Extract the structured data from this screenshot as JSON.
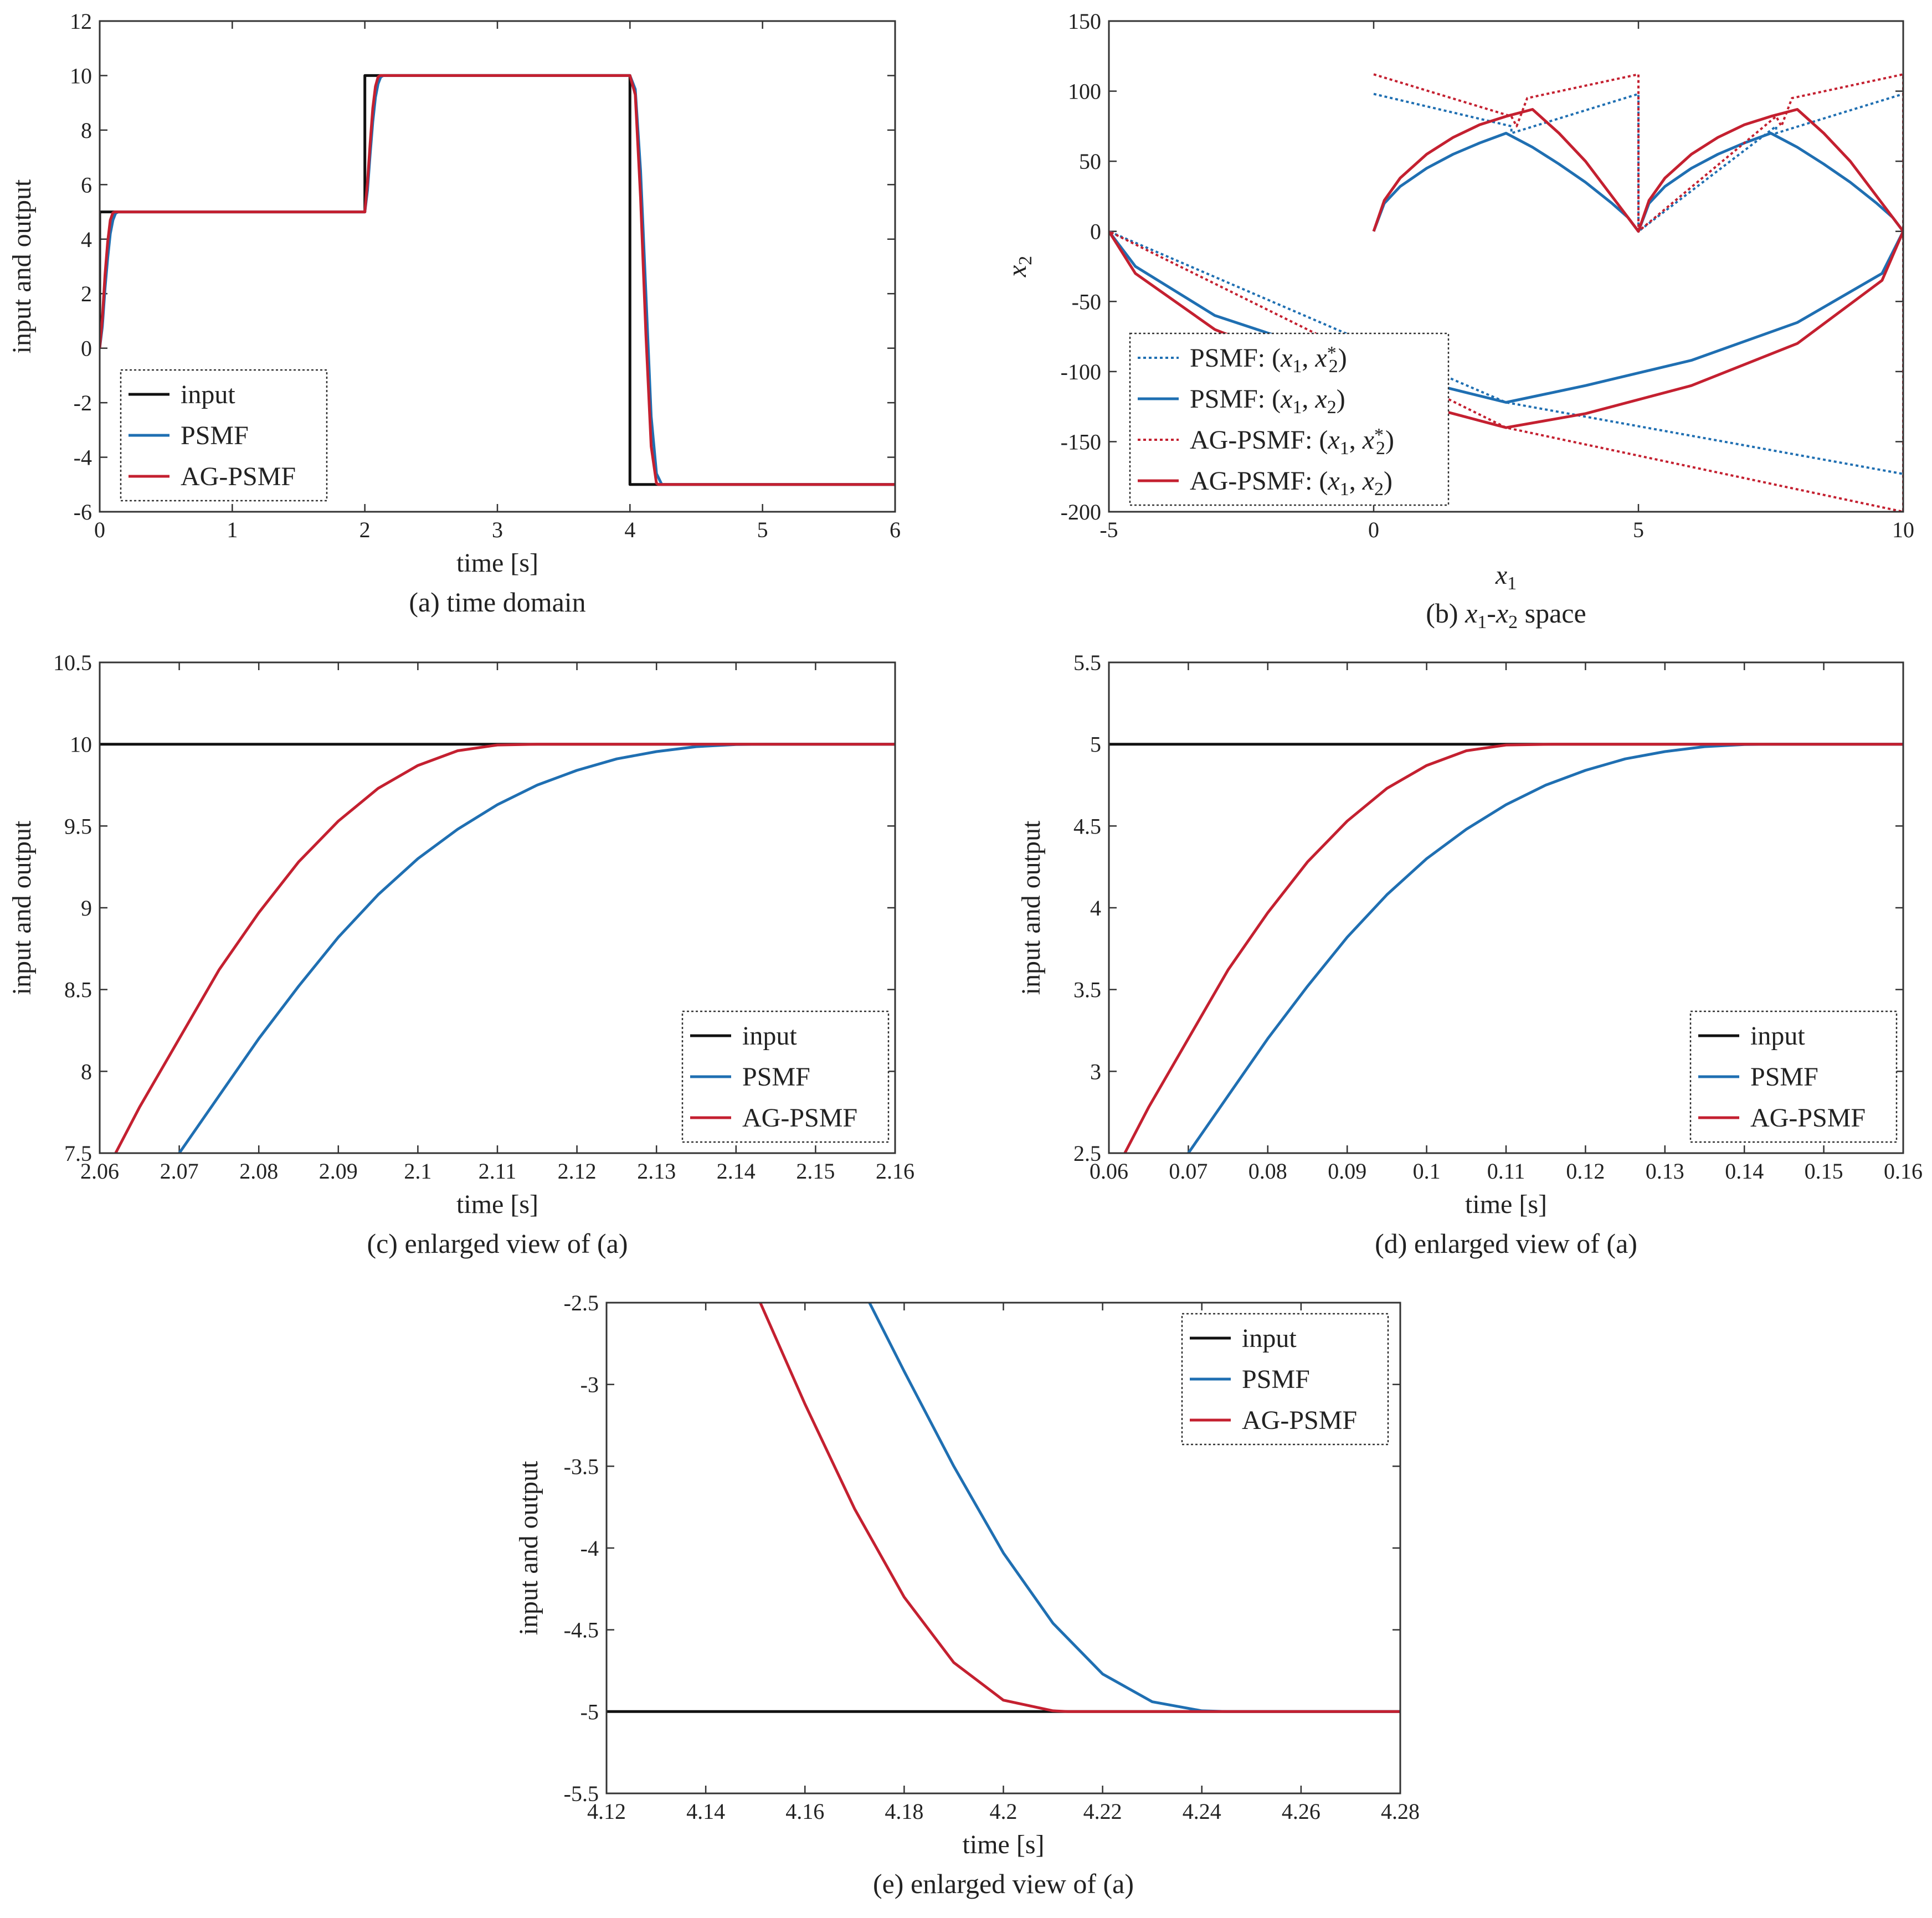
{
  "figure_colors": {
    "input": "#111111",
    "psmf": "#1f6fb2",
    "agpsmf": "#c42030"
  },
  "chart_data": [
    {
      "id": "a",
      "type": "line",
      "caption": "(a) time domain",
      "xlabel": "time [s]",
      "ylabel": "input and output",
      "xlim": [
        0,
        6
      ],
      "ylim": [
        -6,
        12
      ],
      "xticks": [
        0,
        1,
        2,
        3,
        4,
        5,
        6
      ],
      "xtick_labels": [
        "0",
        "1",
        "2",
        "3",
        "4",
        "5",
        "6"
      ],
      "yticks": [
        -6,
        -4,
        -2,
        0,
        2,
        4,
        6,
        8,
        10,
        12
      ],
      "ytick_labels": [
        "-6",
        "-4",
        "-2",
        "0",
        "2",
        "4",
        "6",
        "8",
        "10",
        "12"
      ],
      "legend": {
        "position": "bottom-left",
        "entries": [
          "input",
          "PSMF",
          "AG-PSMF"
        ]
      },
      "series": [
        {
          "name": "input",
          "color": "input",
          "style": "solid",
          "x": [
            0,
            0,
            2,
            2,
            4,
            4,
            6
          ],
          "y": [
            0,
            5,
            5,
            10,
            10,
            -5,
            -5
          ]
        },
        {
          "name": "PSMF",
          "color": "psmf",
          "style": "solid",
          "x": [
            0,
            0.02,
            0.04,
            0.06,
            0.08,
            0.1,
            0.12,
            0.14,
            2,
            2.02,
            2.04,
            2.06,
            2.08,
            2.1,
            2.12,
            2.14,
            4,
            4.04,
            4.08,
            4.12,
            4.16,
            4.2,
            4.24,
            6
          ],
          "y": [
            0,
            0.8,
            2.2,
            3.3,
            4.2,
            4.7,
            4.95,
            5,
            5,
            5.8,
            7.1,
            8.3,
            9.2,
            9.7,
            9.95,
            10,
            10,
            9.5,
            6.5,
            2,
            -2.5,
            -4.6,
            -5,
            -5
          ]
        },
        {
          "name": "AG-PSMF",
          "color": "agpsmf",
          "style": "solid",
          "x": [
            0,
            0.02,
            0.04,
            0.06,
            0.08,
            0.1,
            0.115,
            2,
            2.02,
            2.04,
            2.06,
            2.08,
            2.1,
            2.115,
            4,
            4.04,
            4.08,
            4.12,
            4.16,
            4.2,
            4.215,
            6
          ],
          "y": [
            0,
            1.1,
            2.7,
            3.9,
            4.7,
            4.97,
            5,
            5,
            6.1,
            7.5,
            8.8,
            9.6,
            9.95,
            10,
            10,
            9.3,
            5.5,
            0.5,
            -3.6,
            -4.96,
            -5,
            -5
          ]
        }
      ]
    },
    {
      "id": "b",
      "type": "line",
      "caption_prefix": "(b) ",
      "caption_suffix": " space",
      "caption_x1": "x",
      "caption_x1_sub": "1",
      "caption_dash": "-",
      "caption_x2": "x",
      "caption_x2_sub": "2",
      "xlabel": "x",
      "xlabel_sub": "1",
      "ylabel": "x",
      "ylabel_sub": "2",
      "xlim": [
        -5,
        10
      ],
      "ylim": [
        -200,
        150
      ],
      "xticks": [
        -5,
        0,
        5,
        10
      ],
      "xtick_labels": [
        "-5",
        "0",
        "5",
        "10"
      ],
      "yticks": [
        -200,
        -150,
        -100,
        -50,
        0,
        50,
        100,
        150
      ],
      "ytick_labels": [
        "-200",
        "-150",
        "-100",
        "-50",
        "0",
        "50",
        "100",
        "150"
      ],
      "legend": {
        "position": "bottom-left",
        "entries": [
          {
            "name": "PSMF",
            "pair": "(x1, x2*)"
          },
          {
            "name": "PSMF",
            "pair": "(x1, x2)"
          },
          {
            "name": "AG-PSMF",
            "pair": "(x1, x2*)"
          },
          {
            "name": "AG-PSMF",
            "pair": "(x1, x2)"
          }
        ],
        "text_colon": ": (",
        "text_comma": ", ",
        "text_close": ")",
        "var_x": "x",
        "sub1": "1",
        "sub2": "2",
        "star": "*"
      },
      "series": [
        {
          "name": "PSMF: (x1, x2*)",
          "color": "psmf",
          "style": "dotted",
          "x": [
            0,
            2.6,
            2.6,
            5,
            5,
            7.6,
            7.6,
            10,
            10,
            2.5,
            -5
          ],
          "y": [
            98,
            75,
            70,
            98,
            0,
            75,
            70,
            98,
            -173,
            -122,
            0
          ]
        },
        {
          "name": "PSMF: (x1, x2)",
          "color": "psmf",
          "style": "solid",
          "x": [
            0,
            0.2,
            0.5,
            1,
            1.5,
            2,
            2.5,
            3,
            3.5,
            4,
            4.5,
            4.8,
            5,
            5.2,
            5.5,
            6,
            6.5,
            7,
            7.5,
            8,
            8.5,
            9,
            9.5,
            9.8,
            10,
            9.6,
            8,
            6,
            4,
            2.5,
            1,
            -1,
            -3,
            -4.5,
            -5
          ],
          "y": [
            0,
            20,
            32,
            45,
            55,
            63,
            70,
            60,
            48,
            35,
            20,
            10,
            0,
            20,
            32,
            45,
            55,
            63,
            70,
            60,
            48,
            35,
            20,
            10,
            0,
            -30,
            -65,
            -92,
            -110,
            -122,
            -108,
            -85,
            -60,
            -25,
            0
          ]
        },
        {
          "name": "AG-PSMF: (x1, x2*)",
          "color": "agpsmf",
          "style": "dotted",
          "x": [
            0,
            2.6,
            2.7,
            2.9,
            5,
            5,
            7.6,
            7.7,
            7.9,
            10,
            10,
            2.5,
            -5
          ],
          "y": [
            112,
            82,
            75,
            95,
            112,
            0,
            82,
            75,
            95,
            112,
            -200,
            -140,
            0
          ]
        },
        {
          "name": "AG-PSMF: (x1, x2)",
          "color": "agpsmf",
          "style": "solid",
          "x": [
            0,
            0.2,
            0.5,
            1,
            1.5,
            2,
            2.5,
            3,
            3.5,
            4,
            4.5,
            4.8,
            5,
            5.2,
            5.5,
            6,
            6.5,
            7,
            7.5,
            8,
            8.5,
            9,
            9.5,
            9.8,
            10,
            9.6,
            8,
            6,
            4,
            2.5,
            1,
            -1,
            -3,
            -4.5,
            -5
          ],
          "y": [
            0,
            22,
            38,
            55,
            67,
            76,
            82,
            87,
            70,
            50,
            25,
            10,
            0,
            22,
            38,
            55,
            67,
            76,
            82,
            87,
            70,
            50,
            25,
            10,
            0,
            -35,
            -80,
            -110,
            -130,
            -140,
            -125,
            -100,
            -70,
            -30,
            0
          ]
        }
      ]
    },
    {
      "id": "c",
      "type": "line",
      "caption": "(c) enlarged view of (a)",
      "xlabel": "time [s]",
      "ylabel": "input and output",
      "xlim": [
        2.06,
        2.16
      ],
      "ylim": [
        7.5,
        10.5
      ],
      "xticks": [
        2.06,
        2.07,
        2.08,
        2.09,
        2.1,
        2.11,
        2.12,
        2.13,
        2.14,
        2.15,
        2.16
      ],
      "xtick_labels": [
        "2.06",
        "2.07",
        "2.08",
        "2.09",
        "2.1",
        "2.11",
        "2.12",
        "2.13",
        "2.14",
        "2.15",
        "2.16"
      ],
      "yticks": [
        7.5,
        8,
        8.5,
        9,
        9.5,
        10,
        10.5
      ],
      "ytick_labels": [
        "7.5",
        "8",
        "8.5",
        "9",
        "9.5",
        "10",
        "10.5"
      ],
      "legend": {
        "position": "bottom-right",
        "entries": [
          "input",
          "PSMF",
          "AG-PSMF"
        ]
      },
      "series": [
        {
          "name": "input",
          "color": "input",
          "style": "solid",
          "x": [
            2.06,
            2.16
          ],
          "y": [
            10,
            10
          ]
        },
        {
          "name": "PSMF",
          "color": "psmf",
          "style": "solid",
          "x": [
            2.07,
            2.075,
            2.08,
            2.085,
            2.09,
            2.095,
            2.1,
            2.105,
            2.11,
            2.115,
            2.12,
            2.125,
            2.13,
            2.135,
            2.14,
            2.144,
            2.16
          ],
          "y": [
            7.5,
            7.85,
            8.2,
            8.52,
            8.82,
            9.08,
            9.3,
            9.48,
            9.63,
            9.75,
            9.84,
            9.91,
            9.955,
            9.985,
            9.998,
            10,
            10
          ]
        },
        {
          "name": "AG-PSMF",
          "color": "agpsmf",
          "style": "solid",
          "x": [
            2.062,
            2.065,
            2.07,
            2.075,
            2.08,
            2.085,
            2.09,
            2.095,
            2.1,
            2.105,
            2.11,
            2.115,
            2.16
          ],
          "y": [
            7.5,
            7.78,
            8.2,
            8.62,
            8.97,
            9.28,
            9.53,
            9.73,
            9.87,
            9.96,
            9.995,
            10,
            10
          ]
        }
      ]
    },
    {
      "id": "d",
      "type": "line",
      "caption": "(d) enlarged view of (a)",
      "xlabel": "time [s]",
      "ylabel": "input and output",
      "xlim": [
        0.06,
        0.16
      ],
      "ylim": [
        2.5,
        5.5
      ],
      "xticks": [
        0.06,
        0.07,
        0.08,
        0.09,
        0.1,
        0.11,
        0.12,
        0.13,
        0.14,
        0.15,
        0.16
      ],
      "xtick_labels": [
        "0.06",
        "0.07",
        "0.08",
        "0.09",
        "0.1",
        "0.11",
        "0.12",
        "0.13",
        "0.14",
        "0.15",
        "0.16"
      ],
      "yticks": [
        2.5,
        3,
        3.5,
        4,
        4.5,
        5,
        5.5
      ],
      "ytick_labels": [
        "2.5",
        "3",
        "3.5",
        "4",
        "4.5",
        "5",
        "5.5"
      ],
      "legend": {
        "position": "bottom-right",
        "entries": [
          "input",
          "PSMF",
          "AG-PSMF"
        ]
      },
      "series": [
        {
          "name": "input",
          "color": "input",
          "style": "solid",
          "x": [
            0.06,
            0.16
          ],
          "y": [
            5,
            5
          ]
        },
        {
          "name": "PSMF",
          "color": "psmf",
          "style": "solid",
          "x": [
            0.07,
            0.075,
            0.08,
            0.085,
            0.09,
            0.095,
            0.1,
            0.105,
            0.11,
            0.115,
            0.12,
            0.125,
            0.13,
            0.135,
            0.14,
            0.144,
            0.16
          ],
          "y": [
            2.5,
            2.85,
            3.2,
            3.52,
            3.82,
            4.08,
            4.3,
            4.48,
            4.63,
            4.75,
            4.84,
            4.91,
            4.955,
            4.985,
            4.998,
            5,
            5
          ]
        },
        {
          "name": "AG-PSMF",
          "color": "agpsmf",
          "style": "solid",
          "x": [
            0.062,
            0.065,
            0.07,
            0.075,
            0.08,
            0.085,
            0.09,
            0.095,
            0.1,
            0.105,
            0.11,
            0.116,
            0.16
          ],
          "y": [
            2.5,
            2.78,
            3.2,
            3.62,
            3.97,
            4.28,
            4.53,
            4.73,
            4.87,
            4.96,
            4.995,
            5,
            5
          ]
        }
      ]
    },
    {
      "id": "e",
      "type": "line",
      "caption": "(e) enlarged view of (a)",
      "xlabel": "time [s]",
      "ylabel": "input and output",
      "xlim": [
        4.12,
        4.28
      ],
      "ylim": [
        -5.5,
        -2.5
      ],
      "xticks": [
        4.12,
        4.14,
        4.16,
        4.18,
        4.2,
        4.22,
        4.24,
        4.26,
        4.28
      ],
      "xtick_labels": [
        "4.12",
        "4.14",
        "4.16",
        "4.18",
        "4.2",
        "4.22",
        "4.24",
        "4.26",
        "4.28"
      ],
      "yticks": [
        -5.5,
        -5,
        -4.5,
        -4,
        -3.5,
        -3,
        -2.5
      ],
      "ytick_labels": [
        "-5.5",
        "-5",
        "-4.5",
        "-4",
        "-3.5",
        "-3",
        "-2.5"
      ],
      "legend": {
        "position": "top-right",
        "entries": [
          "input",
          "PSMF",
          "AG-PSMF"
        ]
      },
      "series": [
        {
          "name": "input",
          "color": "input",
          "style": "solid",
          "x": [
            4.12,
            4.28
          ],
          "y": [
            -5,
            -5
          ]
        },
        {
          "name": "PSMF",
          "color": "psmf",
          "style": "solid",
          "x": [
            4.173,
            4.18,
            4.19,
            4.2,
            4.21,
            4.22,
            4.23,
            4.24,
            4.245,
            4.28
          ],
          "y": [
            -2.5,
            -2.92,
            -3.5,
            -4.03,
            -4.46,
            -4.77,
            -4.94,
            -4.995,
            -5,
            -5
          ]
        },
        {
          "name": "AG-PSMF",
          "color": "agpsmf",
          "style": "solid",
          "x": [
            4.151,
            4.16,
            4.17,
            4.18,
            4.19,
            4.2,
            4.21,
            4.213,
            4.28
          ],
          "y": [
            -2.5,
            -3.12,
            -3.76,
            -4.3,
            -4.7,
            -4.93,
            -4.995,
            -5,
            -5
          ]
        }
      ]
    }
  ]
}
